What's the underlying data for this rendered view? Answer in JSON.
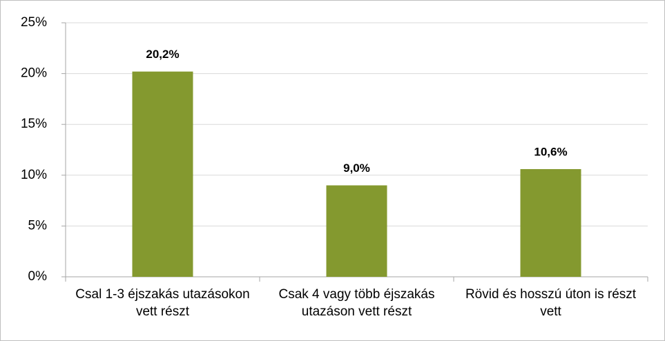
{
  "chart_data": {
    "type": "bar",
    "categories": [
      "Csal 1-3 éjszakás utazásokon vett részt",
      "Csak 4 vagy több éjszakás utazáson vett részt",
      "Rövid és hosszú úton is részt vett"
    ],
    "values": [
      20.2,
      9.0,
      10.6
    ],
    "value_labels": [
      "20,2%",
      "9,0%",
      "10,6%"
    ],
    "color": "#84992f",
    "ylim": [
      0,
      25
    ],
    "yticks": [
      {
        "value": 0,
        "label": "0%"
      },
      {
        "value": 5,
        "label": "5%"
      },
      {
        "value": 10,
        "label": "10%"
      },
      {
        "value": 15,
        "label": "15%"
      },
      {
        "value": 20,
        "label": "20%"
      },
      {
        "value": 25,
        "label": "25%"
      }
    ],
    "grid": true
  }
}
